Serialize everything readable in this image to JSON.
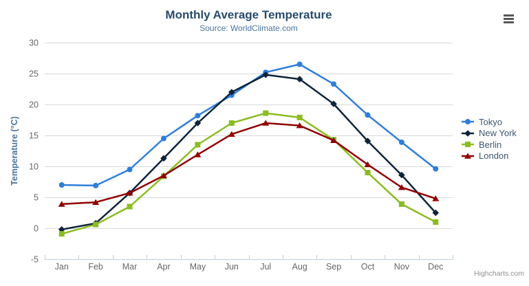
{
  "chart_data": {
    "type": "line",
    "title": "Monthly Average Temperature",
    "subtitle": "Source: WorldClimate.com",
    "xlabel": "",
    "ylabel": "Temperature (°C)",
    "categories": [
      "Jan",
      "Feb",
      "Mar",
      "Apr",
      "May",
      "Jun",
      "Jul",
      "Aug",
      "Sep",
      "Oct",
      "Nov",
      "Dec"
    ],
    "yticks": [
      -5,
      0,
      5,
      10,
      15,
      20,
      25,
      30
    ],
    "ylim": [
      -5,
      30
    ],
    "grid": true,
    "legend_position": "right",
    "series": [
      {
        "name": "Tokyo",
        "color": "#2f7ed8",
        "marker": "circle",
        "values": [
          7.0,
          6.9,
          9.5,
          14.5,
          18.2,
          21.5,
          25.2,
          26.5,
          23.3,
          18.3,
          13.9,
          9.6
        ]
      },
      {
        "name": "New York",
        "color": "#0d233a",
        "marker": "diamond",
        "values": [
          -0.2,
          0.8,
          5.7,
          11.3,
          17.0,
          22.0,
          24.8,
          24.1,
          20.1,
          14.1,
          8.6,
          2.5
        ]
      },
      {
        "name": "Berlin",
        "color": "#8bbc21",
        "marker": "square",
        "values": [
          -0.9,
          0.6,
          3.5,
          8.4,
          13.5,
          17.0,
          18.6,
          17.9,
          14.3,
          9.0,
          3.9,
          1.0
        ]
      },
      {
        "name": "London",
        "color": "#910000",
        "marker": "triangle",
        "values": [
          3.9,
          4.2,
          5.7,
          8.5,
          11.9,
          15.2,
          17.0,
          16.6,
          14.2,
          10.3,
          6.6,
          4.8
        ]
      }
    ],
    "credits": "Highcharts.com",
    "axis_colors": {
      "grid_line": "#d8d8d8",
      "axis_line": "#c0d0e0",
      "tick_label": "#666666",
      "axis_title": "#4d759e"
    }
  }
}
